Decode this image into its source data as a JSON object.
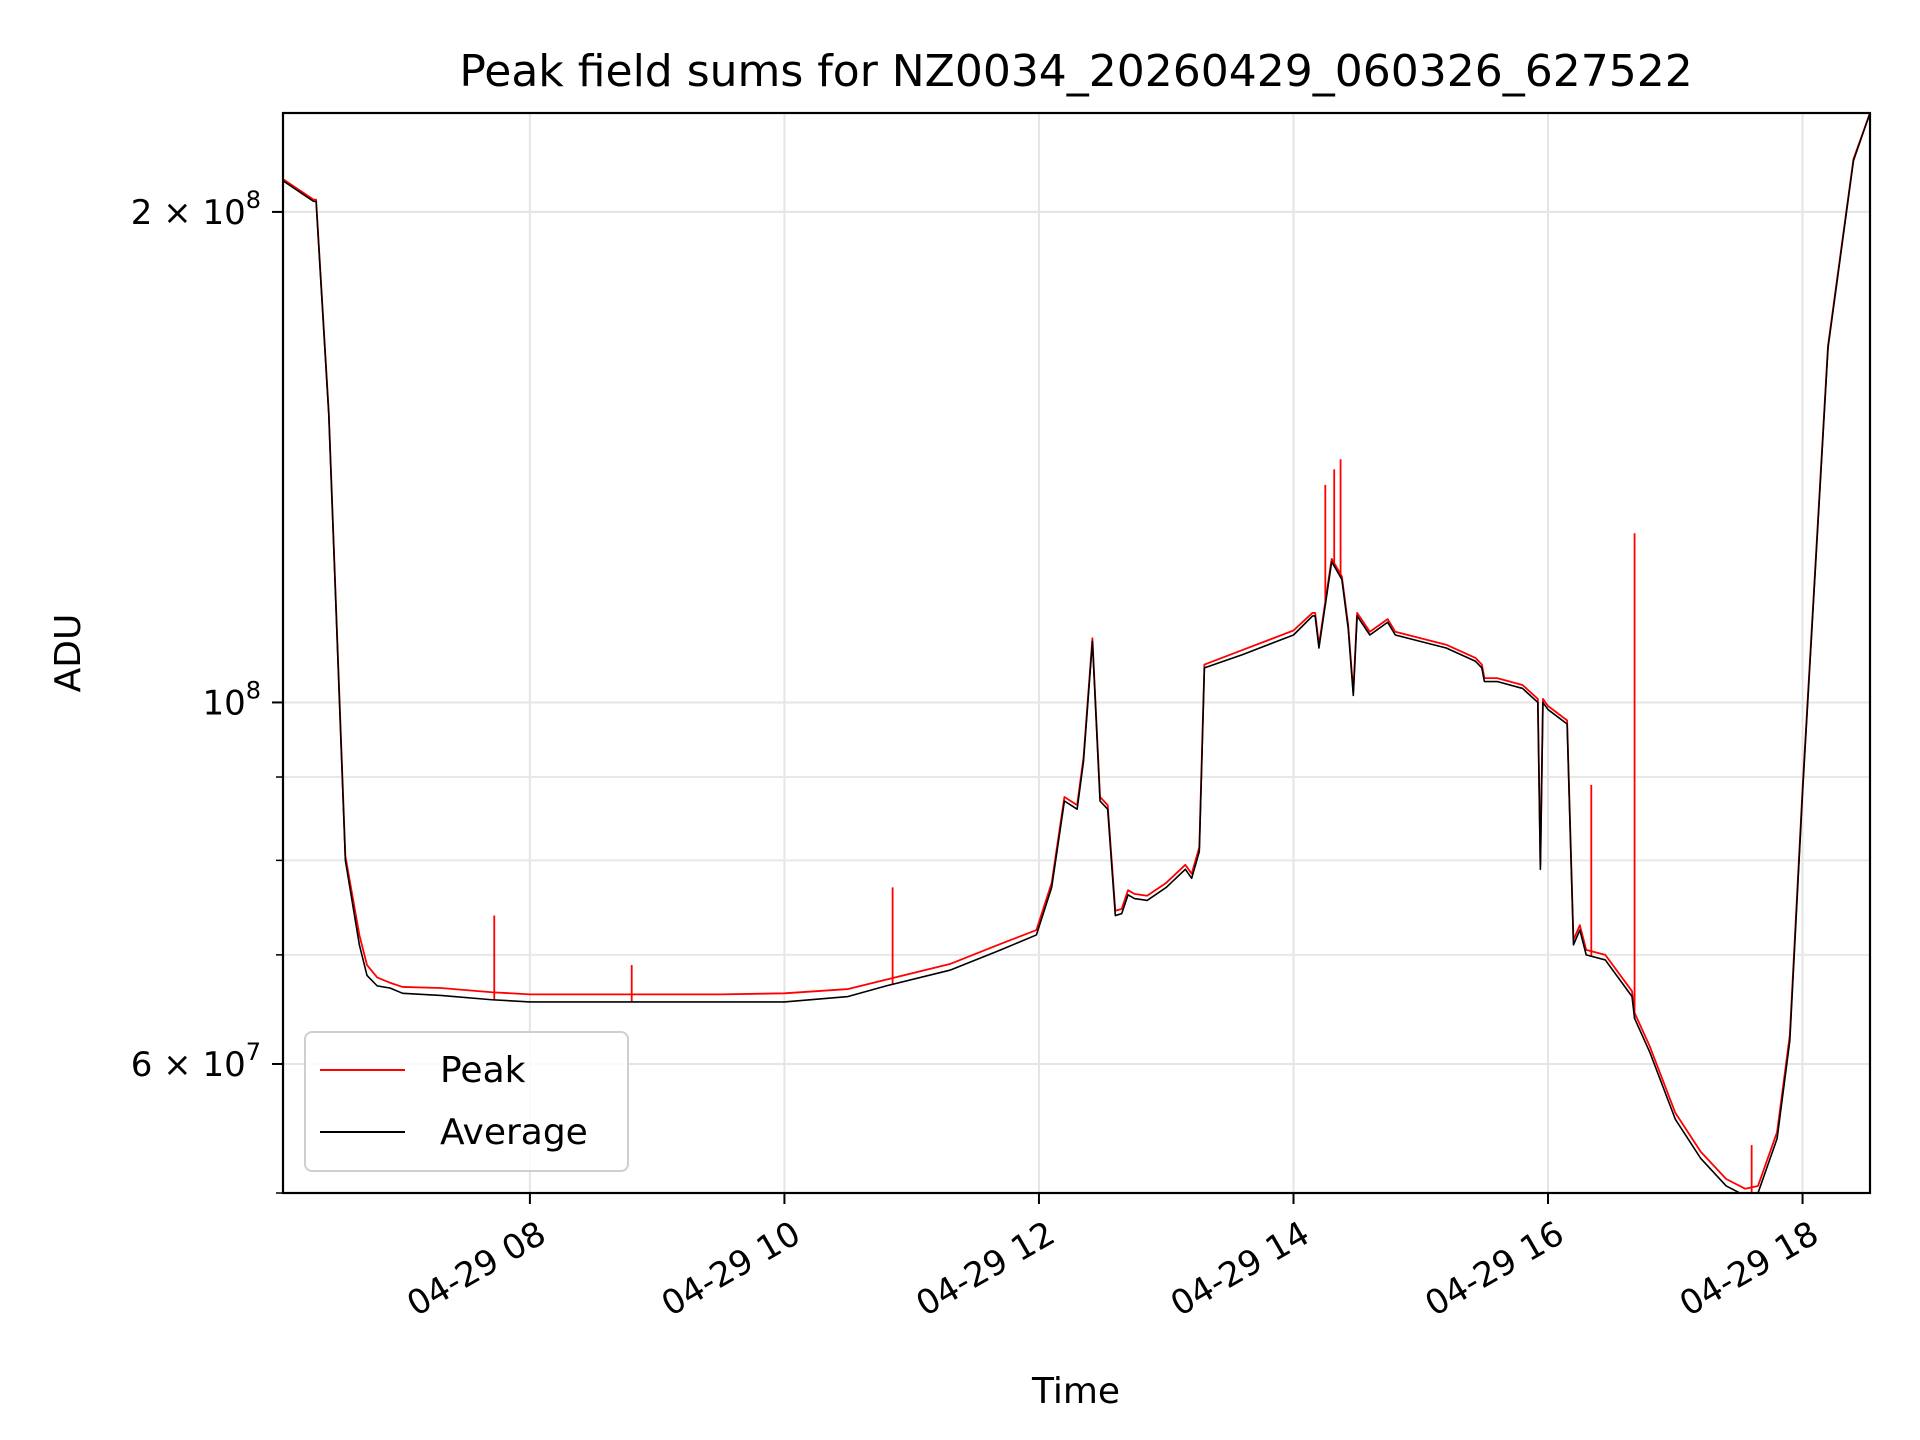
{
  "chart_data": {
    "type": "line",
    "title": "Peak field sums for NZ0034_20260429_060326_627522",
    "xlabel": "Time",
    "ylabel": "ADU",
    "x_unit": "hour of day (2026-04-29)",
    "xlim": [
      6.06,
      18.53
    ],
    "ylim": [
      50000000,
      230000000
    ],
    "yscale": "log",
    "grid": true,
    "legend": {
      "position": "lower-left",
      "entries": [
        "Peak",
        "Average"
      ]
    },
    "x_ticks": [
      {
        "value": 8,
        "label": "04-29 08"
      },
      {
        "value": 10,
        "label": "04-29 10"
      },
      {
        "value": 12,
        "label": "04-29 12"
      },
      {
        "value": 14,
        "label": "04-29 14"
      },
      {
        "value": 16,
        "label": "04-29 16"
      },
      {
        "value": 18,
        "label": "04-29 18"
      }
    ],
    "y_major_ticks": [
      {
        "value": 100000000,
        "label": "10",
        "exp": "8"
      },
      {
        "value": 200000000,
        "label": "2 × 10",
        "exp": "8"
      },
      {
        "value": 60000000,
        "label": "6 × 10",
        "exp": "7"
      }
    ],
    "y_minor_ticks": [
      50000000,
      60000000,
      70000000,
      80000000,
      90000000,
      200000000
    ],
    "series": [
      {
        "name": "Average",
        "color": "#000000",
        "x": [
          6.06,
          6.3,
          6.32,
          6.42,
          6.55,
          6.66,
          6.72,
          6.8,
          6.9,
          7.0,
          7.3,
          7.7,
          8.0,
          8.5,
          9.0,
          9.5,
          10.0,
          10.5,
          10.8,
          11.3,
          11.7,
          11.98,
          12.1,
          12.2,
          12.3,
          12.35,
          12.42,
          12.48,
          12.54,
          12.6,
          12.65,
          12.7,
          12.75,
          12.85,
          13.0,
          13.15,
          13.2,
          13.26,
          13.3,
          13.6,
          14.0,
          14.15,
          14.17,
          14.2,
          14.3,
          14.38,
          14.43,
          14.47,
          14.5,
          14.6,
          14.74,
          14.8,
          15.0,
          15.2,
          15.43,
          15.48,
          15.5,
          15.6,
          15.8,
          15.92,
          15.94,
          15.96,
          16.0,
          16.15,
          16.2,
          16.25,
          16.3,
          16.45,
          16.66,
          16.68,
          16.8,
          17.0,
          17.2,
          17.4,
          17.55,
          17.65,
          17.8,
          17.9,
          18.0,
          18.2,
          18.4,
          18.53
        ],
        "y": [
          209000000,
          203000000,
          203000000,
          150000000,
          80000000,
          71000000,
          68000000,
          67000000,
          66800000,
          66300000,
          66100000,
          65700000,
          65500000,
          65500000,
          65500000,
          65500000,
          65500000,
          66000000,
          67000000,
          68500000,
          70500000,
          72000000,
          77000000,
          87000000,
          86000000,
          92000000,
          109000000,
          87000000,
          86000000,
          74000000,
          74200000,
          76200000,
          75800000,
          75600000,
          77000000,
          79000000,
          78000000,
          81000000,
          105000000,
          107000000,
          110000000,
          113000000,
          113000000,
          108000000,
          122000000,
          119000000,
          111000000,
          101000000,
          113000000,
          110000000,
          112000000,
          110000000,
          109000000,
          108000000,
          106000000,
          105000000,
          103000000,
          103000000,
          102000000,
          100000000,
          79000000,
          100000000,
          99000000,
          97000000,
          71000000,
          72500000,
          70000000,
          69500000,
          66000000,
          64000000,
          61000000,
          55500000,
          52500000,
          50500000,
          49800000,
          50000000,
          54000000,
          62000000,
          88000000,
          165000000,
          215000000,
          230000000
        ]
      },
      {
        "name": "Peak",
        "color": "#ff0000",
        "x": [
          6.06,
          6.3,
          6.32,
          6.42,
          6.55,
          6.66,
          6.72,
          6.8,
          6.9,
          7.0,
          7.3,
          7.7,
          8.0,
          8.5,
          9.0,
          9.5,
          10.0,
          10.5,
          10.8,
          11.3,
          11.7,
          11.98,
          12.1,
          12.2,
          12.3,
          12.35,
          12.42,
          12.48,
          12.54,
          12.6,
          12.65,
          12.7,
          12.75,
          12.85,
          13.0,
          13.15,
          13.2,
          13.26,
          13.3,
          13.6,
          14.0,
          14.15,
          14.17,
          14.2,
          14.3,
          14.38,
          14.43,
          14.47,
          14.5,
          14.6,
          14.74,
          14.8,
          15.0,
          15.2,
          15.43,
          15.48,
          15.5,
          15.6,
          15.8,
          15.92,
          15.94,
          15.96,
          16.0,
          16.15,
          16.2,
          16.25,
          16.3,
          16.45,
          16.66,
          16.68,
          16.8,
          17.0,
          17.2,
          17.4,
          17.55,
          17.65,
          17.8,
          17.9,
          18.0,
          18.2,
          18.4,
          18.53
        ],
        "y": [
          209500000,
          203500000,
          203500000,
          150500000,
          80500000,
          72000000,
          69000000,
          67800000,
          67300000,
          66900000,
          66800000,
          66400000,
          66200000,
          66200000,
          66200000,
          66200000,
          66300000,
          66700000,
          67600000,
          69100000,
          71100000,
          72500000,
          77500000,
          87500000,
          86500000,
          92500000,
          109500000,
          87500000,
          86500000,
          74500000,
          74700000,
          76700000,
          76300000,
          76100000,
          77500000,
          79500000,
          78500000,
          81500000,
          105500000,
          107700000,
          110700000,
          113500000,
          113500000,
          108500000,
          122500000,
          119500000,
          111500000,
          101500000,
          113500000,
          110500000,
          112500000,
          110500000,
          109500000,
          108500000,
          106500000,
          105500000,
          103500000,
          103500000,
          102500000,
          100500000,
          79500000,
          100500000,
          99500000,
          97500000,
          71500000,
          73000000,
          70500000,
          70000000,
          66500000,
          64500000,
          61500000,
          56000000,
          53000000,
          51000000,
          50300000,
          50500000,
          54500000,
          62500000,
          88500000,
          165500000,
          215500000,
          230000000
        ],
        "spikes": [
          {
            "x": 7.72,
            "y": 74000000
          },
          {
            "x": 8.8,
            "y": 69000000
          },
          {
            "x": 10.85,
            "y": 77000000
          },
          {
            "x": 14.25,
            "y": 136000000
          },
          {
            "x": 14.32,
            "y": 139000000
          },
          {
            "x": 14.37,
            "y": 141000000
          },
          {
            "x": 16.68,
            "y": 127000000
          },
          {
            "x": 16.34,
            "y": 89000000
          },
          {
            "x": 17.6,
            "y": 53500000
          }
        ]
      }
    ]
  }
}
